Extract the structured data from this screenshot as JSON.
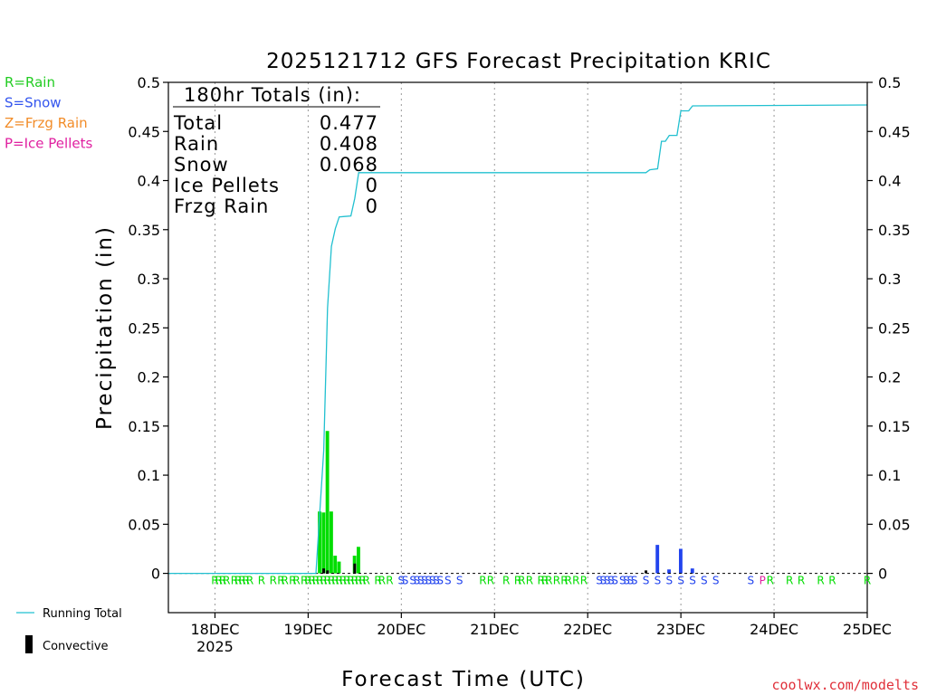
{
  "chart_data": {
    "type": "bar",
    "title": "2025121712 GFS Forecast Precipitation KRIC",
    "ylabel": "Precipitation (in)",
    "xlabel": "Forecast Time (UTC)",
    "ylim": [
      -0.04,
      0.5
    ],
    "yticks": [
      "0.5",
      "0.45",
      "0.4",
      "0.35",
      "0.3",
      "0.25",
      "0.2",
      "0.15",
      "0.1",
      "0.05",
      "0"
    ],
    "yticks_right": [
      "0.5",
      "0.45",
      "0.4",
      "0.35",
      "0.3",
      "0.25",
      "0.2",
      "0.15",
      "0.1",
      "0.05",
      "0"
    ],
    "xticks": [
      {
        "hour": 12,
        "label": "18DEC",
        "sub": "2025"
      },
      {
        "hour": 36,
        "label": "19DEC",
        "sub": ""
      },
      {
        "hour": 60,
        "label": "20DEC",
        "sub": ""
      },
      {
        "hour": 84,
        "label": "21DEC",
        "sub": ""
      },
      {
        "hour": 108,
        "label": "22DEC",
        "sub": ""
      },
      {
        "hour": 132,
        "label": "23DEC",
        "sub": ""
      },
      {
        "hour": 156,
        "label": "24DEC",
        "sub": ""
      },
      {
        "hour": 180,
        "label": "25DEC",
        "sub": ""
      }
    ],
    "xlim": [
      0,
      180
    ],
    "grid": "vertical dotted at day boundaries",
    "precip_bars": [
      {
        "hour": 39,
        "value": 0.063,
        "type": "R"
      },
      {
        "hour": 40,
        "value": 0.062,
        "type": "R"
      },
      {
        "hour": 41,
        "value": 0.145,
        "type": "R"
      },
      {
        "hour": 42,
        "value": 0.063,
        "type": "R"
      },
      {
        "hour": 43,
        "value": 0.018,
        "type": "R"
      },
      {
        "hour": 44,
        "value": 0.012,
        "type": "R"
      },
      {
        "hour": 48,
        "value": 0.018,
        "type": "R"
      },
      {
        "hour": 49,
        "value": 0.027,
        "type": "R"
      },
      {
        "hour": 126,
        "value": 0.029,
        "type": "S"
      },
      {
        "hour": 129,
        "value": 0.004,
        "type": "S"
      },
      {
        "hour": 132,
        "value": 0.025,
        "type": "S"
      },
      {
        "hour": 135,
        "value": 0.005,
        "type": "S"
      }
    ],
    "convective_bars": [
      {
        "hour": 40,
        "value": 0.005
      },
      {
        "hour": 41,
        "value": 0.003
      },
      {
        "hour": 48,
        "value": 0.01
      },
      {
        "hour": 123,
        "value": 0.003
      }
    ],
    "running_total": [
      [
        0,
        0
      ],
      [
        38,
        0
      ],
      [
        39,
        0.063
      ],
      [
        40,
        0.125
      ],
      [
        41,
        0.27
      ],
      [
        42,
        0.333
      ],
      [
        43,
        0.351
      ],
      [
        44,
        0.363
      ],
      [
        47,
        0.364
      ],
      [
        48,
        0.382
      ],
      [
        49,
        0.408
      ],
      [
        123,
        0.408
      ],
      [
        124,
        0.411
      ],
      [
        126,
        0.412
      ],
      [
        127,
        0.44
      ],
      [
        128,
        0.44
      ],
      [
        129,
        0.446
      ],
      [
        131,
        0.446
      ],
      [
        132,
        0.471
      ],
      [
        134,
        0.471
      ],
      [
        135,
        0.476
      ],
      [
        180,
        0.477
      ]
    ],
    "ptype_row": [
      {
        "hour": 12,
        "t": "R"
      },
      {
        "hour": 13,
        "t": "R"
      },
      {
        "hour": 14,
        "t": "R"
      },
      {
        "hour": 15,
        "t": "R"
      },
      {
        "hour": 17,
        "t": "R"
      },
      {
        "hour": 18,
        "t": "R"
      },
      {
        "hour": 19,
        "t": "R"
      },
      {
        "hour": 20,
        "t": "R"
      },
      {
        "hour": 21,
        "t": "R"
      },
      {
        "hour": 24,
        "t": "R"
      },
      {
        "hour": 27,
        "t": "R"
      },
      {
        "hour": 29,
        "t": "R"
      },
      {
        "hour": 30,
        "t": "R"
      },
      {
        "hour": 32,
        "t": "R"
      },
      {
        "hour": 33,
        "t": "R"
      },
      {
        "hour": 35,
        "t": "R"
      },
      {
        "hour": 36,
        "t": "R"
      },
      {
        "hour": 37,
        "t": "R"
      },
      {
        "hour": 38,
        "t": "R"
      },
      {
        "hour": 39,
        "t": "R"
      },
      {
        "hour": 40,
        "t": "R"
      },
      {
        "hour": 41,
        "t": "R"
      },
      {
        "hour": 42,
        "t": "R"
      },
      {
        "hour": 43,
        "t": "R"
      },
      {
        "hour": 44,
        "t": "R"
      },
      {
        "hour": 45,
        "t": "R"
      },
      {
        "hour": 46,
        "t": "R"
      },
      {
        "hour": 47,
        "t": "R"
      },
      {
        "hour": 48,
        "t": "R"
      },
      {
        "hour": 49,
        "t": "R"
      },
      {
        "hour": 50,
        "t": "R"
      },
      {
        "hour": 51,
        "t": "R"
      },
      {
        "hour": 54,
        "t": "R"
      },
      {
        "hour": 55,
        "t": "R"
      },
      {
        "hour": 57,
        "t": "R"
      },
      {
        "hour": 60,
        "t": "S"
      },
      {
        "hour": 61,
        "t": "S"
      },
      {
        "hour": 63,
        "t": "S"
      },
      {
        "hour": 64,
        "t": "S"
      },
      {
        "hour": 65,
        "t": "S"
      },
      {
        "hour": 66,
        "t": "S"
      },
      {
        "hour": 67,
        "t": "S"
      },
      {
        "hour": 68,
        "t": "S"
      },
      {
        "hour": 69,
        "t": "S"
      },
      {
        "hour": 70,
        "t": "S"
      },
      {
        "hour": 72,
        "t": "S"
      },
      {
        "hour": 75,
        "t": "S"
      },
      {
        "hour": 81,
        "t": "R"
      },
      {
        "hour": 83,
        "t": "R"
      },
      {
        "hour": 87,
        "t": "R"
      },
      {
        "hour": 90,
        "t": "R"
      },
      {
        "hour": 91,
        "t": "R"
      },
      {
        "hour": 93,
        "t": "R"
      },
      {
        "hour": 96,
        "t": "R"
      },
      {
        "hour": 97,
        "t": "R"
      },
      {
        "hour": 98,
        "t": "R"
      },
      {
        "hour": 100,
        "t": "R"
      },
      {
        "hour": 102,
        "t": "R"
      },
      {
        "hour": 103,
        "t": "R"
      },
      {
        "hour": 105,
        "t": "R"
      },
      {
        "hour": 107,
        "t": "R"
      },
      {
        "hour": 111,
        "t": "S"
      },
      {
        "hour": 112,
        "t": "S"
      },
      {
        "hour": 113,
        "t": "S"
      },
      {
        "hour": 114,
        "t": "S"
      },
      {
        "hour": 115,
        "t": "S"
      },
      {
        "hour": 117,
        "t": "S"
      },
      {
        "hour": 118,
        "t": "S"
      },
      {
        "hour": 119,
        "t": "S"
      },
      {
        "hour": 120,
        "t": "S"
      },
      {
        "hour": 123,
        "t": "S"
      },
      {
        "hour": 126,
        "t": "S"
      },
      {
        "hour": 129,
        "t": "S"
      },
      {
        "hour": 132,
        "t": "S"
      },
      {
        "hour": 135,
        "t": "S"
      },
      {
        "hour": 138,
        "t": "S"
      },
      {
        "hour": 141,
        "t": "S"
      },
      {
        "hour": 150,
        "t": "S"
      },
      {
        "hour": 153,
        "t": "P"
      },
      {
        "hour": 155,
        "t": "R"
      },
      {
        "hour": 160,
        "t": "R"
      },
      {
        "hour": 163,
        "t": "R"
      },
      {
        "hour": 168,
        "t": "R"
      },
      {
        "hour": 171,
        "t": "R"
      },
      {
        "hour": 180,
        "t": "R"
      }
    ],
    "totals": {
      "header": "180hr Totals (in):",
      "rows": [
        {
          "label": "Total",
          "value": "0.477"
        },
        {
          "label": "Rain",
          "value": "0.408"
        },
        {
          "label": "Snow",
          "value": "0.068"
        },
        {
          "label": "Ice Pellets",
          "value": "0"
        },
        {
          "label": "Frzg Rain",
          "value": "0"
        }
      ]
    },
    "ptype_legend": [
      {
        "text": "R=Rain",
        "color": "#22cc22"
      },
      {
        "text": "S=Snow",
        "color": "#3355ee"
      },
      {
        "text": "Z=Frzg Rain",
        "color": "#f28c28"
      },
      {
        "text": "P=Ice Pellets",
        "color": "#e020a0"
      }
    ],
    "series_legend": [
      {
        "text": "Running Total",
        "color": "#22c0d0"
      },
      {
        "text": "Convective",
        "color": "#000000"
      }
    ],
    "colors": {
      "rain": "#00dd00",
      "snow": "#2244ee",
      "ice": "#e020a0",
      "frzg": "#f28c28",
      "running_total": "#22c0d0",
      "convective": "#000000",
      "credit": "#e0303a"
    },
    "credit": "coolwx.com/modelts"
  }
}
